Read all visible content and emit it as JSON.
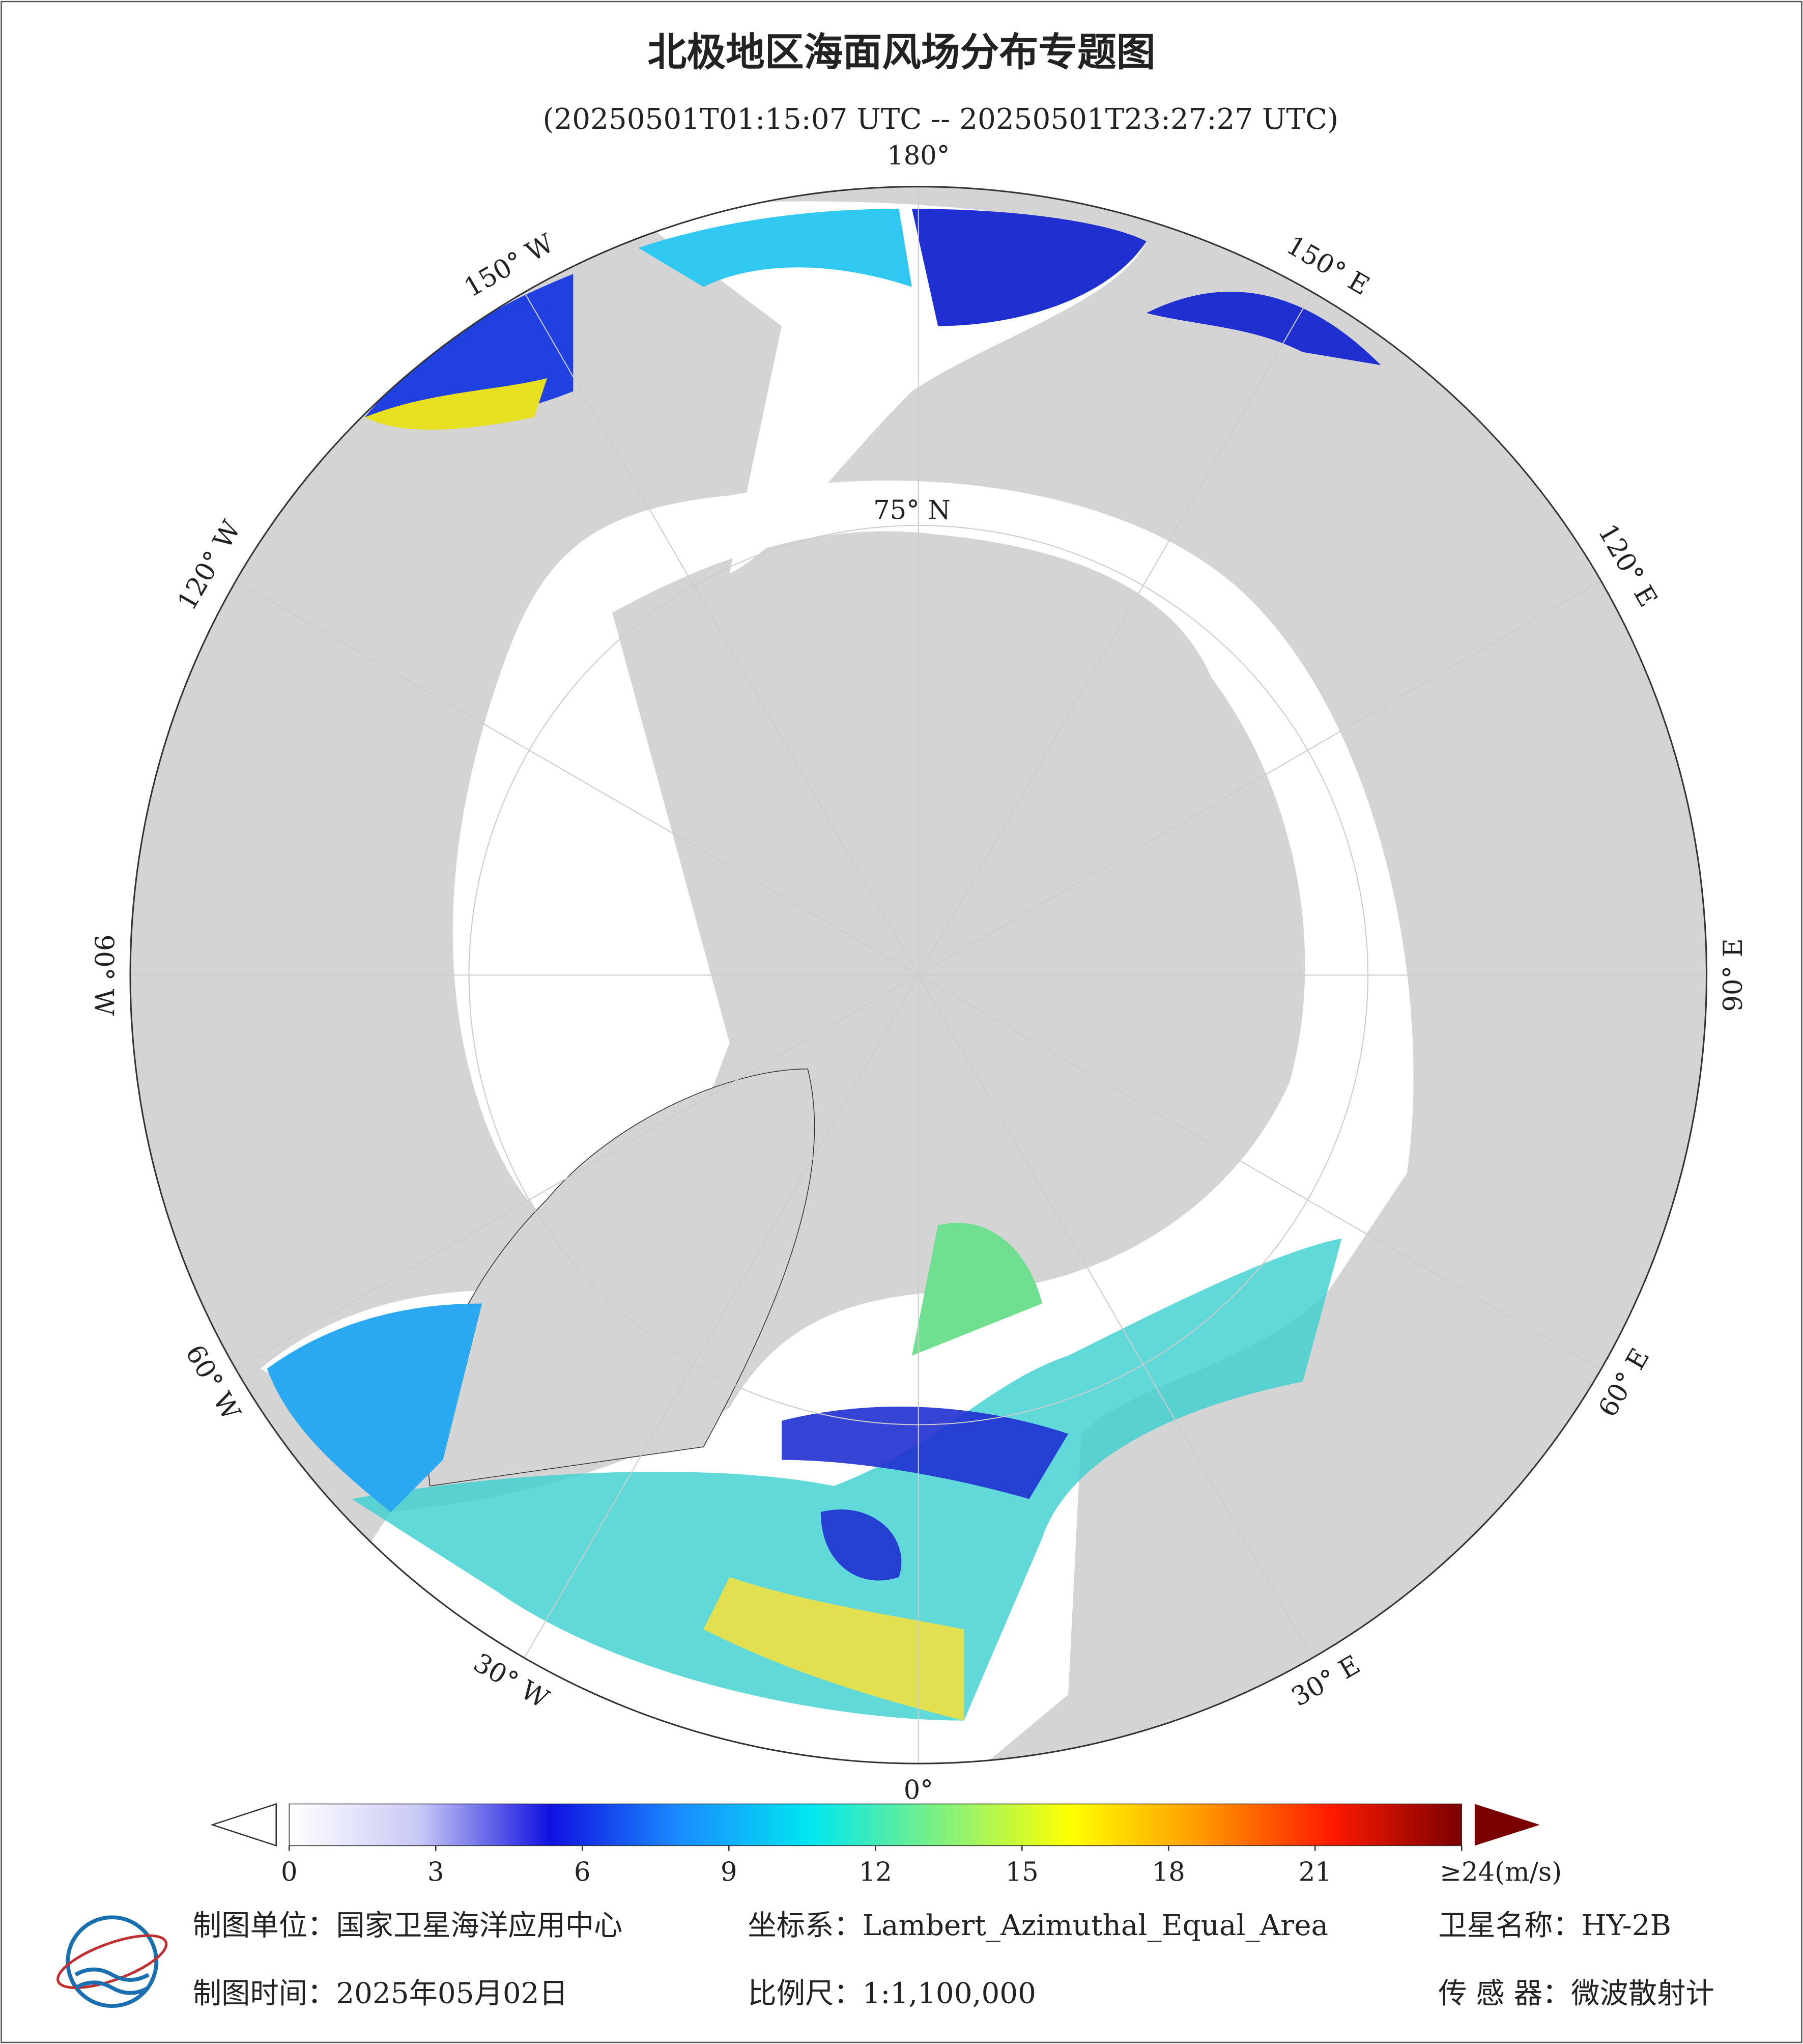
{
  "header": {
    "title": "北极地区海面风场分布专题图",
    "subtitle": "(20250501T01:15:07 UTC -- 20250501T23:27:27 UTC)"
  },
  "map": {
    "meridians": [
      {
        "lon": 180,
        "label": "180°"
      },
      {
        "lon": 150,
        "label": "150° E"
      },
      {
        "lon": 120,
        "label": "120° E"
      },
      {
        "lon": 90,
        "label": "90° E"
      },
      {
        "lon": 60,
        "label": "60° E"
      },
      {
        "lon": 30,
        "label": "30° E"
      },
      {
        "lon": 0,
        "label": "0°"
      },
      {
        "lon": -30,
        "label": "30° W"
      },
      {
        "lon": -60,
        "label": "60° W"
      },
      {
        "lon": -90,
        "label": "90° W"
      },
      {
        "lon": -120,
        "label": "120° W"
      },
      {
        "lon": -150,
        "label": "150° W"
      }
    ],
    "parallel_label": "75° N"
  },
  "colorbar": {
    "range": [
      0,
      24
    ],
    "ticks": [
      0,
      3,
      6,
      9,
      12,
      15,
      18,
      21,
      {
        "value": 24,
        "label": "≥24(m/s)"
      }
    ],
    "colors": [
      "#ffffff",
      "#c8c8f5",
      "#1010e0",
      "#1a8cff",
      "#00e6f0",
      "#80f080",
      "#ffff00",
      "#ff9900",
      "#ff1a00",
      "#7a0000"
    ]
  },
  "footer": {
    "unit": "制图单位：国家卫星海洋应用中心",
    "crs": "坐标系：Lambert_Azimuthal_Equal_Area",
    "satellite": "卫星名称：HY-2B",
    "date": "制图时间：2025年05月02日",
    "scale": "比例尺：1:1,100,000",
    "sensor": "传 感 器：微波散射计"
  }
}
